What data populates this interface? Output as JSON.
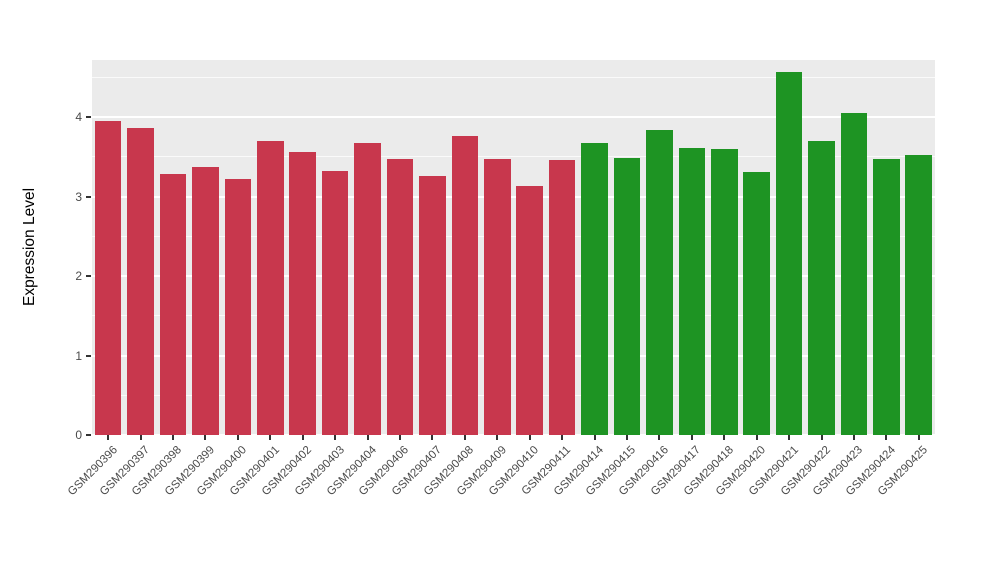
{
  "chart_data": {
    "type": "bar",
    "title": "",
    "xlabel": "",
    "ylabel": "Expression Level",
    "ylim": [
      0,
      4.72
    ],
    "yticks": [
      0,
      1,
      2,
      3,
      4
    ],
    "yticks_minor": [
      0.5,
      1.5,
      2.5,
      3.5,
      4.5
    ],
    "grid": true,
    "legend": "none",
    "panel_bg": "#EBEBEB",
    "grid_color": "#FFFFFF",
    "tick_color": "#333333",
    "tick_label_color": "#4a4a4a",
    "categories": [
      "GSM290396",
      "GSM290397",
      "GSM290398",
      "GSM290399",
      "GSM290400",
      "GSM290401",
      "GSM290402",
      "GSM290403",
      "GSM290404",
      "GSM290406",
      "GSM290407",
      "GSM290408",
      "GSM290409",
      "GSM290410",
      "GSM290411",
      "GSM290414",
      "GSM290415",
      "GSM290416",
      "GSM290417",
      "GSM290418",
      "GSM290420",
      "GSM290421",
      "GSM290422",
      "GSM290423",
      "GSM290424",
      "GSM290425"
    ],
    "values": [
      3.95,
      3.86,
      3.28,
      3.37,
      3.22,
      3.7,
      3.56,
      3.32,
      3.68,
      3.47,
      3.26,
      3.76,
      3.48,
      3.14,
      3.46,
      3.67,
      3.49,
      3.84,
      3.61,
      3.6,
      3.31,
      4.57,
      3.7,
      4.05,
      3.48,
      3.52
    ],
    "groups": [
      "red",
      "red",
      "red",
      "red",
      "red",
      "red",
      "red",
      "red",
      "red",
      "red",
      "red",
      "red",
      "red",
      "red",
      "red",
      "green",
      "green",
      "green",
      "green",
      "green",
      "green",
      "green",
      "green",
      "green",
      "green",
      "green"
    ],
    "palette": {
      "red": "#C8374D",
      "green": "#1E9423"
    },
    "bar_width_fraction": 0.82
  }
}
